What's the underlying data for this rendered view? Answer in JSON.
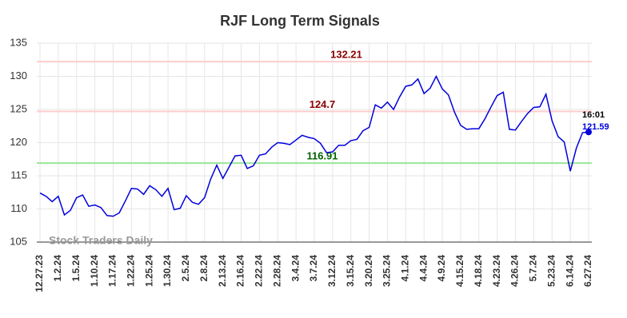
{
  "chart_data": {
    "type": "line",
    "title": "RJF Long Term Signals",
    "categories": [
      "12.27.23",
      null,
      null,
      "1.2.24",
      null,
      null,
      "1.5.24",
      null,
      null,
      "1.10.24",
      null,
      null,
      "1.17.24",
      null,
      null,
      "1.22.24",
      null,
      null,
      "1.25.24",
      null,
      null,
      "1.30.24",
      null,
      null,
      "2.5.24",
      null,
      null,
      "2.8.24",
      null,
      null,
      "2.13.24",
      null,
      null,
      "2.16.24",
      null,
      null,
      "2.22.24",
      null,
      null,
      "2.28.24",
      null,
      null,
      "3.4.24",
      null,
      null,
      "3.7.24",
      null,
      null,
      "3.12.24",
      null,
      null,
      "3.15.24",
      null,
      null,
      "3.20.24",
      null,
      null,
      "3.25.24",
      null,
      null,
      "4.1.24",
      null,
      null,
      "4.4.24",
      null,
      null,
      "4.9.24",
      null,
      null,
      "4.15.24",
      null,
      null,
      "4.18.24",
      null,
      null,
      "4.23.24",
      null,
      null,
      "4.26.24",
      null,
      null,
      "5.7.24",
      null,
      null,
      "5.23.24",
      null,
      null,
      "6.14.24",
      null,
      null,
      "6.27.24"
    ],
    "values": [
      112.4,
      111.9,
      111.1,
      111.9,
      109.1,
      109.8,
      111.7,
      112.1,
      110.4,
      110.6,
      110.2,
      109.0,
      108.9,
      109.4,
      111.2,
      113.1,
      113.0,
      112.2,
      113.5,
      112.9,
      111.9,
      113.1,
      109.9,
      110.1,
      112.0,
      111.0,
      110.7,
      111.7,
      114.5,
      116.6,
      114.6,
      116.3,
      118.0,
      118.1,
      116.1,
      116.5,
      118.1,
      118.3,
      119.3,
      120.0,
      119.9,
      119.7,
      120.4,
      121.1,
      120.8,
      120.6,
      119.9,
      118.5,
      118.6,
      119.6,
      119.6,
      120.3,
      120.5,
      121.8,
      122.3,
      125.7,
      125.2,
      126.1,
      125.0,
      126.9,
      128.5,
      128.7,
      129.6,
      127.4,
      128.2,
      130.0,
      128.1,
      127.2,
      124.6,
      122.6,
      122.0,
      122.1,
      122.1,
      123.6,
      125.4,
      127.1,
      127.6,
      122.0,
      121.9,
      123.2,
      124.4,
      125.3,
      125.4,
      127.3,
      123.3,
      120.9,
      120.1,
      115.7,
      119.2,
      121.5,
      121.59
    ],
    "color": "#0000dd",
    "ylim": [
      105,
      135
    ],
    "yticks": [
      105,
      110,
      115,
      120,
      125,
      130,
      135
    ],
    "grid": true,
    "hlines": [
      {
        "value": 132.21,
        "color": "#ffcccc",
        "label_color": "#8b0000"
      },
      {
        "value": 124.7,
        "color": "#ffcccc",
        "label_color": "#8b0000"
      },
      {
        "value": 116.91,
        "color": "#99e699",
        "label_color": "#006400"
      }
    ],
    "last_time": "16:01",
    "watermark": "Stock Traders Daily"
  }
}
